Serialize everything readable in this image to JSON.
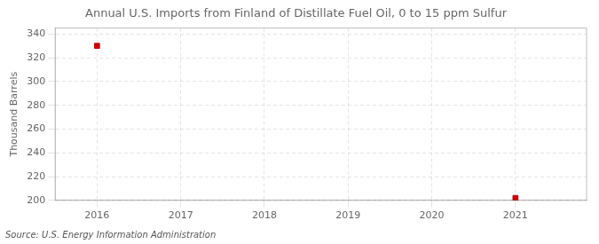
{
  "chart_data": {
    "type": "scatter",
    "title": "Annual U.S. Imports from Finland of Distillate Fuel Oil, 0 to 15 ppm Sulfur",
    "ylabel": "Thousand Barrels",
    "source": "Source: U.S. Energy Information Administration",
    "x": [
      2016,
      2021
    ],
    "values": [
      330,
      202
    ],
    "color": "#cc0000",
    "marker": "square",
    "xlim": [
      2015.5,
      2021.85
    ],
    "xticks": [
      2016,
      2017,
      2018,
      2019,
      2020,
      2021
    ],
    "ylim": [
      200,
      345
    ],
    "yticks": [
      200,
      220,
      240,
      260,
      280,
      300,
      320,
      340
    ],
    "grid": true
  }
}
